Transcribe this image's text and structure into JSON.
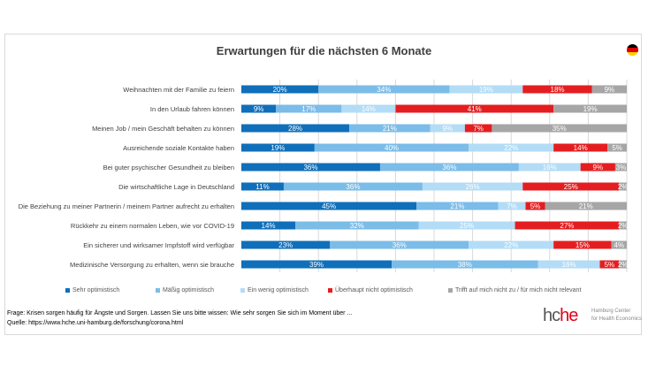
{
  "chart_data": {
    "type": "bar",
    "orientation": "horizontal",
    "stacked": true,
    "title": "Erwartungen für die nächsten 6 Monate",
    "categories": [
      "Weihnachten mit der Familie zu feiern",
      "In den Urlaub fahren können",
      "Meinen Job / mein Geschäft behalten zu können",
      "Ausreichende soziale Kontakte haben",
      "Bei guter psychischer Gesundheit zu bleiben",
      "Die wirtschaftliche Lage in Deutschland",
      "Die Beziehung zu meiner Partnerin / meinem Partner aufrecht zu erhalten",
      "Rückkehr zu einem normalen Leben, wie vor COVID-19",
      "Ein sicherer und wirksamer Impfstoff wird verfügbar",
      "Medizinische Versorgung zu erhalten, wenn sie brauche"
    ],
    "series": [
      {
        "name": "Sehr optimistisch",
        "color": "#0f6fba",
        "values": [
          20,
          9,
          28,
          19,
          36,
          11,
          45,
          14,
          23,
          39
        ]
      },
      {
        "name": "Mäßig optimistisch",
        "color": "#7bbce8",
        "values": [
          34,
          17,
          21,
          40,
          36,
          36,
          21,
          32,
          36,
          38
        ]
      },
      {
        "name": "Ein wenig optimistisch",
        "color": "#b3dcf6",
        "values": [
          19,
          14,
          9,
          22,
          16,
          26,
          7,
          25,
          22,
          16
        ]
      },
      {
        "name": "Überhaupt nicht optimistisch",
        "color": "#e41e20",
        "values": [
          18,
          41,
          7,
          14,
          9,
          25,
          5,
          27,
          15,
          5
        ]
      },
      {
        "name": "Trifft auf mich nicht zu / für mich nicht relevant",
        "color": "#a6a6a6",
        "values": [
          9,
          19,
          35,
          5,
          3,
          2,
          21,
          2,
          4,
          2
        ]
      }
    ],
    "xlim": [
      0,
      100
    ],
    "value_suffix": "%",
    "grid": true,
    "legend": "bottom"
  },
  "footer": {
    "question": "Frage: Krisen sorgen häufig für Ängste und Sorgen. Lassen Sie uns bitte wissen: Wie sehr sorgen Sie sich im Moment über ...",
    "source": "Quelle: https://www.hche.uni-hamburg.de/forschung/corona.html"
  },
  "logo": {
    "text_a": "hc",
    "text_b": "he",
    "line1": "Hamburg Center",
    "line2": "for Health Economics"
  },
  "flag": "germany-flag"
}
